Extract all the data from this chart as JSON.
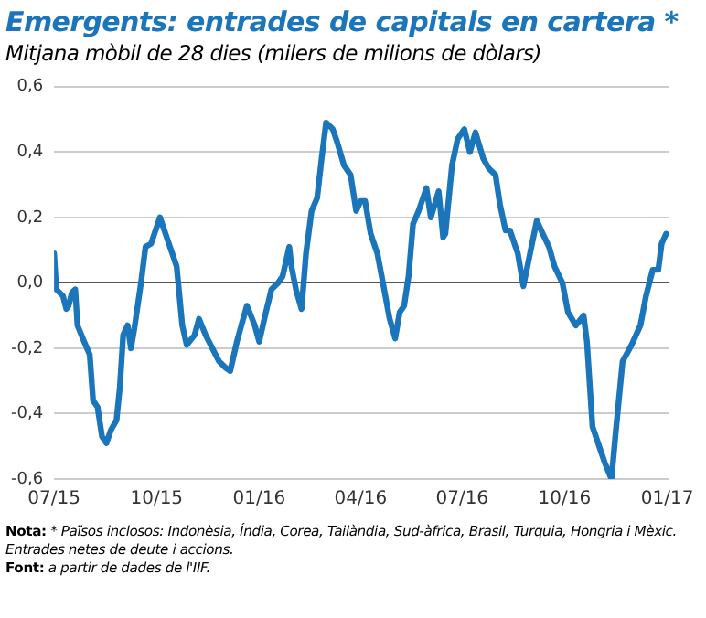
{
  "chart_data": {
    "type": "line",
    "title": "Emergents: entrades de capitals en cartera *",
    "subtitle": "Mitjana mòbil de 28 dies (milers de milions de dòlars)",
    "x": [
      "2015-07-01",
      "2015-07-03",
      "2015-07-09",
      "2015-07-12",
      "2015-07-14",
      "2015-07-17",
      "2015-07-20",
      "2015-07-22",
      "2015-07-28",
      "2015-08-02",
      "2015-08-05",
      "2015-08-09",
      "2015-08-13",
      "2015-08-17",
      "2015-08-21",
      "2015-08-26",
      "2015-08-29",
      "2015-09-01",
      "2015-09-05",
      "2015-09-08",
      "2015-09-11",
      "2015-09-17",
      "2015-09-21",
      "2015-09-26",
      "2015-10-04",
      "2015-10-09",
      "2015-10-14",
      "2015-10-19",
      "2015-10-24",
      "2015-10-28",
      "2015-11-04",
      "2015-11-08",
      "2015-11-14",
      "2015-11-20",
      "2015-11-26",
      "2015-12-02",
      "2015-12-06",
      "2015-12-12",
      "2015-12-16",
      "2015-12-21",
      "2015-12-28",
      "2016-01-01",
      "2016-01-07",
      "2016-01-12",
      "2016-01-18",
      "2016-01-22",
      "2016-01-28",
      "2016-01-30",
      "2016-02-03",
      "2016-02-08",
      "2016-02-12",
      "2016-02-17",
      "2016-02-22",
      "2016-02-26",
      "2016-03-01",
      "2016-03-07",
      "2016-03-11",
      "2016-03-17",
      "2016-03-23",
      "2016-03-28",
      "2016-04-01",
      "2016-04-05",
      "2016-04-10",
      "2016-04-16",
      "2016-04-21",
      "2016-04-27",
      "2016-05-02",
      "2016-05-06",
      "2016-05-10",
      "2016-05-14",
      "2016-05-18",
      "2016-05-23",
      "2016-05-30",
      "2016-06-03",
      "2016-06-10",
      "2016-06-14",
      "2016-06-16",
      "2016-06-22",
      "2016-06-27",
      "2016-07-03",
      "2016-07-08",
      "2016-07-13",
      "2016-07-20",
      "2016-07-25",
      "2016-07-31",
      "2016-08-04",
      "2016-08-09",
      "2016-08-13",
      "2016-08-20",
      "2016-08-25",
      "2016-08-31",
      "2016-09-06",
      "2016-09-10",
      "2016-09-17",
      "2016-09-22",
      "2016-09-29",
      "2016-10-04",
      "2016-10-11",
      "2016-10-18",
      "2016-10-21",
      "2016-10-26",
      "2016-10-31",
      "2016-11-06",
      "2016-11-12",
      "2016-11-16",
      "2016-11-22",
      "2016-11-30",
      "2016-12-08",
      "2016-12-13",
      "2016-12-19",
      "2016-12-24",
      "2016-12-27",
      "2016-12-31"
    ],
    "series": [
      {
        "color": "#1a75bb",
        "values": [
          0.09,
          -0.02,
          -0.04,
          -0.08,
          -0.07,
          -0.03,
          -0.02,
          -0.13,
          -0.18,
          -0.22,
          -0.36,
          -0.38,
          -0.47,
          -0.49,
          -0.45,
          -0.42,
          -0.32,
          -0.16,
          -0.13,
          -0.2,
          -0.14,
          0.0,
          0.11,
          0.12,
          0.2,
          0.15,
          0.1,
          0.05,
          -0.13,
          -0.19,
          -0.16,
          -0.11,
          -0.16,
          -0.2,
          -0.24,
          -0.26,
          -0.27,
          -0.18,
          -0.13,
          -0.07,
          -0.13,
          -0.18,
          -0.09,
          -0.02,
          0.0,
          0.02,
          0.11,
          0.05,
          -0.02,
          -0.08,
          0.09,
          0.22,
          0.26,
          0.38,
          0.49,
          0.47,
          0.43,
          0.36,
          0.33,
          0.22,
          0.25,
          0.25,
          0.15,
          0.09,
          0.0,
          -0.11,
          -0.17,
          -0.09,
          -0.07,
          0.02,
          0.18,
          0.22,
          0.29,
          0.2,
          0.28,
          0.14,
          0.15,
          0.36,
          0.44,
          0.47,
          0.4,
          0.46,
          0.38,
          0.35,
          0.33,
          0.24,
          0.16,
          0.16,
          0.09,
          -0.01,
          0.09,
          0.19,
          0.16,
          0.11,
          0.05,
          0.0,
          -0.09,
          -0.13,
          -0.1,
          -0.18,
          -0.44,
          -0.49,
          -0.55,
          -0.6,
          -0.45,
          -0.24,
          -0.19,
          -0.13,
          -0.04,
          0.04,
          0.04,
          0.12,
          0.15
        ]
      }
    ],
    "xlim": [
      "2015-07-01",
      "2017-01-03"
    ],
    "xticks": [
      {
        "value": "2015-07-01",
        "label": "07/15"
      },
      {
        "value": "2015-10-01",
        "label": "10/15"
      },
      {
        "value": "2016-01-01",
        "label": "01/16"
      },
      {
        "value": "2016-04-01",
        "label": "04/16"
      },
      {
        "value": "2016-07-01",
        "label": "07/16"
      },
      {
        "value": "2016-10-01",
        "label": "10/16"
      },
      {
        "value": "2017-01-01",
        "label": "01/17"
      }
    ],
    "ylim": [
      -0.6,
      0.6
    ],
    "yticks": [
      {
        "value": -0.6,
        "label": "-0,6"
      },
      {
        "value": -0.4,
        "label": "-0,4"
      },
      {
        "value": -0.2,
        "label": "-0,2"
      },
      {
        "value": 0,
        "label": "0,0"
      },
      {
        "value": 0.2,
        "label": "0,2"
      },
      {
        "value": 0.4,
        "label": "0,4"
      },
      {
        "value": 0.6,
        "label": "0,6"
      }
    ],
    "grid": "y",
    "legend": false,
    "marker": "none",
    "line_style": "solid",
    "annotations": [
      "Nota: * Països inclosos: Indonèsia, Índia, Corea, Tailàndia, Sud-àfrica, Brasil, Turquia, Hongria i Mèxic.",
      "Entrades netes de deute i accions.",
      "Font: a partir de dades de l'IIF."
    ]
  }
}
